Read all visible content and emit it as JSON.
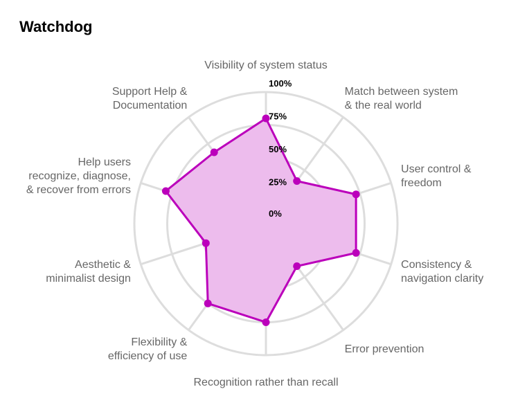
{
  "chart_data": {
    "type": "radar",
    "title": "Watchdog",
    "axes": [
      {
        "label_lines": [
          "Visibility of system status"
        ]
      },
      {
        "label_lines": [
          "Match between system",
          "& the real world"
        ]
      },
      {
        "label_lines": [
          "User control &",
          "freedom"
        ]
      },
      {
        "label_lines": [
          "Consistency &",
          "navigation clarity"
        ]
      },
      {
        "label_lines": [
          "Error prevention"
        ]
      },
      {
        "label_lines": [
          "Recognition rather than recall"
        ]
      },
      {
        "label_lines": [
          "Flexibility &",
          "efficiency of use"
        ]
      },
      {
        "label_lines": [
          "Aesthetic &",
          "minimalist design"
        ]
      },
      {
        "label_lines": [
          "Help users",
          "recognize, diagnose,",
          "& recover from errors"
        ]
      },
      {
        "label_lines": [
          "Support Help &",
          "Documentation"
        ]
      }
    ],
    "ticks": [
      "0%",
      "25%",
      "50%",
      "75%",
      "100%"
    ],
    "tick_values": [
      0,
      25,
      50,
      75,
      100
    ],
    "range": [
      0,
      100
    ],
    "series": [
      {
        "values": [
          80,
          40,
          72,
          72,
          40,
          75,
          75,
          48,
          80,
          67
        ],
        "color": "#BB00BB",
        "fill": "#EDBCED"
      }
    ],
    "grid_color": "#DDDDDD"
  }
}
